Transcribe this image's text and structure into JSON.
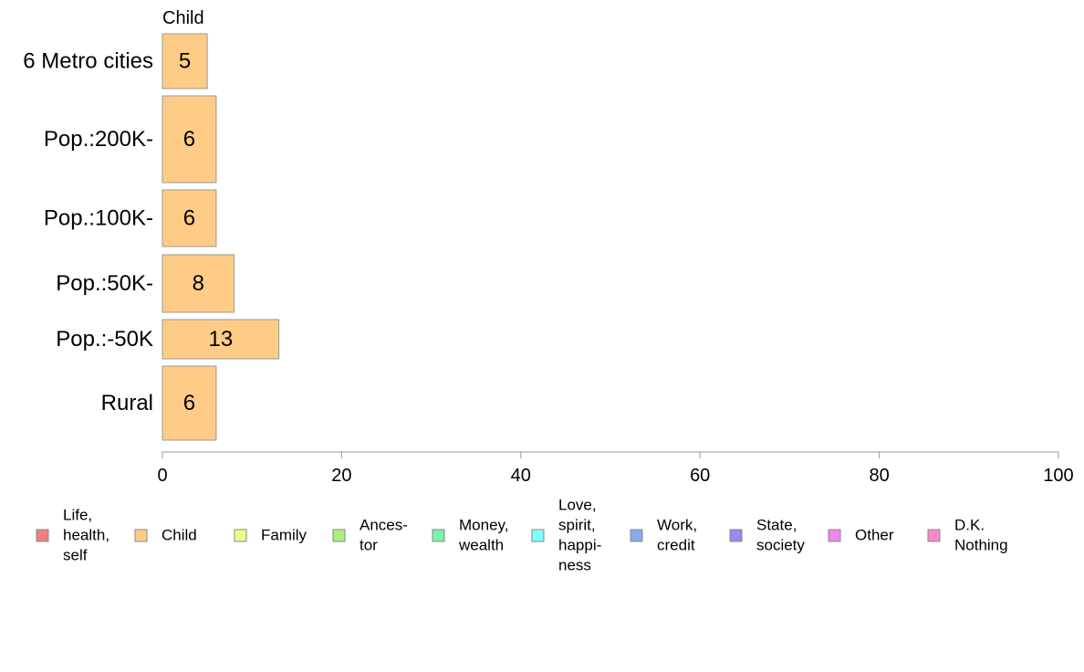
{
  "chart_data": {
    "type": "bar",
    "orientation": "horizontal",
    "series_title": "Child",
    "categories": [
      "6 Metro cities",
      "Pop.:200K-",
      "Pop.:100K-",
      "Pop.:50K-",
      "Pop.:-50K",
      "Rural"
    ],
    "series": [
      {
        "name": "Child",
        "color": "#ffcc88",
        "values": [
          5,
          6,
          6,
          8,
          13,
          6
        ],
        "labels": [
          "5",
          "6",
          "6",
          "8",
          "13",
          "6"
        ]
      }
    ],
    "xlim": [
      0,
      100
    ],
    "xticks": [
      0,
      20,
      40,
      60,
      80,
      100
    ],
    "xtick_labels": [
      "0",
      "20",
      "40",
      "60",
      "80",
      "100"
    ],
    "grid": false,
    "legend_position": "bottom",
    "legend": [
      {
        "lines": [
          "Life,",
          "health,",
          "self"
        ],
        "color": "#f08080"
      },
      {
        "lines": [
          "Child"
        ],
        "color": "#ffcc88"
      },
      {
        "lines": [
          "Family"
        ],
        "color": "#eeff88"
      },
      {
        "lines": [
          "Ances-",
          "tor"
        ],
        "color": "#aaf080"
      },
      {
        "lines": [
          "Money,",
          "wealth"
        ],
        "color": "#80f0b0"
      },
      {
        "lines": [
          "Love,",
          "spirit,",
          "happi-",
          "ness"
        ],
        "color": "#80ffff"
      },
      {
        "lines": [
          "Work,",
          "credit"
        ],
        "color": "#88aaee"
      },
      {
        "lines": [
          "State,",
          "society"
        ],
        "color": "#9988ee"
      },
      {
        "lines": [
          "Other"
        ],
        "color": "#ee88ee"
      },
      {
        "lines": [
          "D.K.",
          "Nothing"
        ],
        "color": "#ff88cc"
      }
    ]
  }
}
